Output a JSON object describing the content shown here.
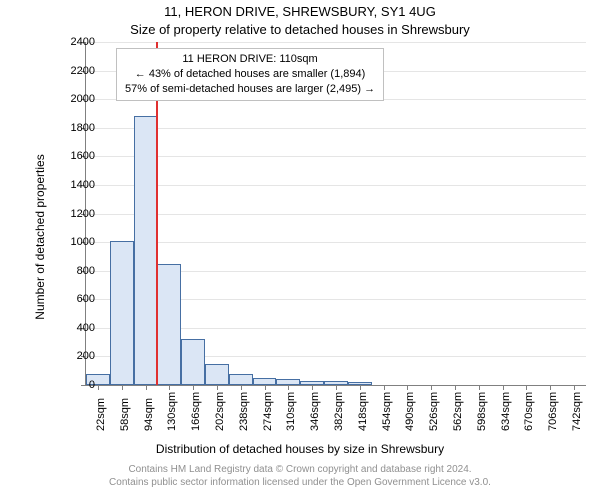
{
  "title": {
    "line1": "11, HERON DRIVE, SHREWSBURY, SY1 4UG",
    "line2": "Size of property relative to detached houses in Shrewsbury"
  },
  "axes": {
    "ylabel": "Number of detached properties",
    "xlabel": "Distribution of detached houses by size in Shrewsbury",
    "ylim": [
      0,
      2400
    ],
    "ytick_step": 200,
    "label_fontsize": 12,
    "tick_fontsize": 11
  },
  "chart": {
    "type": "histogram",
    "background_color": "#ffffff",
    "grid_color": "#e5e5e5",
    "axis_color": "#808080",
    "bar_fill": "#dbe6f5",
    "bar_border": "#466fa3",
    "marker_color": "#e03030",
    "categories": [
      "22sqm",
      "58sqm",
      "94sqm",
      "130sqm",
      "166sqm",
      "202sqm",
      "238sqm",
      "274sqm",
      "310sqm",
      "346sqm",
      "382sqm",
      "418sqm",
      "454sqm",
      "490sqm",
      "526sqm",
      "562sqm",
      "598sqm",
      "634sqm",
      "670sqm",
      "706sqm",
      "742sqm"
    ],
    "values": [
      80,
      1010,
      1880,
      850,
      320,
      150,
      80,
      50,
      40,
      30,
      25,
      20,
      0,
      0,
      0,
      0,
      0,
      0,
      0,
      0,
      0
    ],
    "marker_value_sqm": 110
  },
  "annotation": {
    "line1": "11 HERON DRIVE: 110sqm",
    "line2": "← 43% of detached houses are smaller (1,894)",
    "line3": "57% of semi-detached houses are larger (2,495) →"
  },
  "footer": {
    "line1": "Contains HM Land Registry data © Crown copyright and database right 2024.",
    "line2": "Contains public sector information licensed under the Open Government Licence v3.0."
  }
}
